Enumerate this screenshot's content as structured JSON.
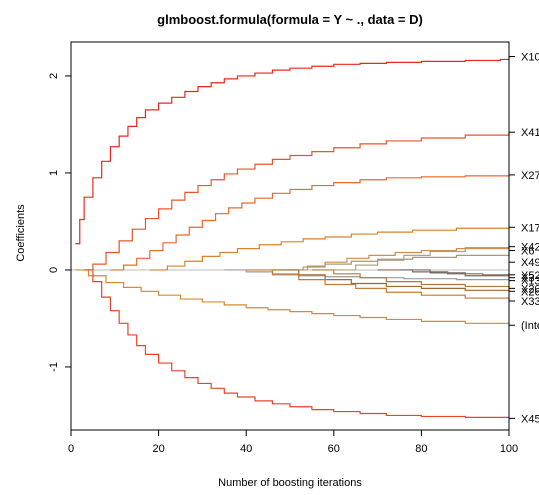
{
  "chart_data": {
    "type": "line",
    "title": "glmboost.formula(formula = Y ~ ., data = D)",
    "xlabel": "Number of boosting iterations",
    "ylabel": "Coefficients",
    "xlim": [
      0,
      100
    ],
    "ylim": [
      -1.65,
      2.35
    ],
    "x_ticks": [
      0,
      20,
      40,
      60,
      80,
      100
    ],
    "y_ticks": [
      -1,
      0,
      1,
      2
    ],
    "zero_line": true,
    "series": [
      {
        "name": "X10",
        "color": "#e8281f",
        "points": [
          [
            1,
            0.27
          ],
          [
            2,
            0.52
          ],
          [
            3,
            0.75
          ],
          [
            5,
            0.95
          ],
          [
            7,
            1.12
          ],
          [
            9,
            1.27
          ],
          [
            11,
            1.38
          ],
          [
            13,
            1.48
          ],
          [
            15,
            1.57
          ],
          [
            17,
            1.65
          ],
          [
            20,
            1.72
          ],
          [
            23,
            1.78
          ],
          [
            26,
            1.84
          ],
          [
            29,
            1.89
          ],
          [
            32,
            1.93
          ],
          [
            35,
            1.97
          ],
          [
            38,
            2.0
          ],
          [
            42,
            2.03
          ],
          [
            46,
            2.06
          ],
          [
            50,
            2.08
          ],
          [
            55,
            2.1
          ],
          [
            60,
            2.12
          ],
          [
            66,
            2.13
          ],
          [
            72,
            2.14
          ],
          [
            80,
            2.15
          ],
          [
            90,
            2.16
          ],
          [
            98,
            2.17
          ],
          [
            100,
            2.2
          ]
        ]
      },
      {
        "name": "X41",
        "color": "#e8552b",
        "points": [
          [
            3,
            0.0
          ],
          [
            5,
            0.06
          ],
          [
            8,
            0.18
          ],
          [
            11,
            0.3
          ],
          [
            14,
            0.42
          ],
          [
            17,
            0.53
          ],
          [
            20,
            0.63
          ],
          [
            23,
            0.72
          ],
          [
            26,
            0.8
          ],
          [
            29,
            0.87
          ],
          [
            32,
            0.93
          ],
          [
            35,
            0.99
          ],
          [
            38,
            1.04
          ],
          [
            42,
            1.09
          ],
          [
            46,
            1.14
          ],
          [
            50,
            1.18
          ],
          [
            55,
            1.22
          ],
          [
            60,
            1.26
          ],
          [
            66,
            1.3
          ],
          [
            72,
            1.33
          ],
          [
            80,
            1.36
          ],
          [
            90,
            1.39
          ],
          [
            100,
            1.42
          ]
        ]
      },
      {
        "name": "X27",
        "color": "#e8682b",
        "points": [
          [
            9,
            0.0
          ],
          [
            12,
            0.05
          ],
          [
            15,
            0.12
          ],
          [
            18,
            0.2
          ],
          [
            21,
            0.28
          ],
          [
            24,
            0.36
          ],
          [
            27,
            0.44
          ],
          [
            30,
            0.51
          ],
          [
            33,
            0.58
          ],
          [
            36,
            0.64
          ],
          [
            39,
            0.69
          ],
          [
            42,
            0.74
          ],
          [
            46,
            0.79
          ],
          [
            50,
            0.83
          ],
          [
            55,
            0.87
          ],
          [
            60,
            0.9
          ],
          [
            66,
            0.93
          ],
          [
            72,
            0.95
          ],
          [
            80,
            0.96
          ],
          [
            90,
            0.97
          ],
          [
            100,
            0.98
          ]
        ]
      },
      {
        "name": "X17",
        "color": "#d9822b",
        "points": [
          [
            18,
            0.0
          ],
          [
            22,
            0.04
          ],
          [
            26,
            0.09
          ],
          [
            30,
            0.14
          ],
          [
            34,
            0.18
          ],
          [
            38,
            0.22
          ],
          [
            43,
            0.26
          ],
          [
            48,
            0.29
          ],
          [
            53,
            0.32
          ],
          [
            58,
            0.34
          ],
          [
            64,
            0.37
          ],
          [
            70,
            0.39
          ],
          [
            78,
            0.41
          ],
          [
            88,
            0.43
          ],
          [
            100,
            0.44
          ]
        ]
      },
      {
        "name": "X42",
        "color": "#c98f4c",
        "points": [
          [
            50,
            0.0
          ],
          [
            54,
            0.04
          ],
          [
            58,
            0.08
          ],
          [
            63,
            0.12
          ],
          [
            68,
            0.15
          ],
          [
            74,
            0.18
          ],
          [
            80,
            0.2
          ],
          [
            88,
            0.22
          ],
          [
            100,
            0.24
          ]
        ]
      },
      {
        "name": "X6",
        "color": "#b0a085",
        "points": [
          [
            60,
            0.0
          ],
          [
            65,
            0.05
          ],
          [
            70,
            0.1
          ],
          [
            76,
            0.15
          ],
          [
            82,
            0.19
          ],
          [
            90,
            0.23
          ],
          [
            100,
            0.27
          ]
        ]
      },
      {
        "name": "X49",
        "color": "#a89878",
        "points": [
          [
            48,
            0.0
          ],
          [
            53,
            0.03
          ],
          [
            58,
            0.06
          ],
          [
            64,
            0.09
          ],
          [
            70,
            0.11
          ],
          [
            78,
            0.13
          ],
          [
            88,
            0.15
          ],
          [
            100,
            0.17
          ]
        ]
      },
      {
        "name": "X52",
        "color": "#8a6a55",
        "points": [
          [
            70,
            0.0
          ],
          [
            78,
            -0.02
          ],
          [
            86,
            -0.04
          ],
          [
            94,
            -0.05
          ],
          [
            100,
            -0.06
          ]
        ]
      },
      {
        "name": "X3",
        "color": "#6e6e6e",
        "points": [
          [
            75,
            0.0
          ],
          [
            82,
            -0.03
          ],
          [
            90,
            -0.06
          ],
          [
            100,
            -0.08
          ]
        ]
      },
      {
        "name": "X13",
        "color": "#9a9a9a",
        "points": [
          [
            35,
            0.0
          ],
          [
            40,
            -0.02
          ],
          [
            46,
            -0.04
          ],
          [
            52,
            -0.06
          ],
          [
            58,
            -0.07
          ],
          [
            66,
            -0.08
          ],
          [
            76,
            -0.09
          ],
          [
            88,
            -0.1
          ],
          [
            100,
            -0.11
          ]
        ]
      },
      {
        "name": "X20",
        "color": "#b0793e",
        "points": [
          [
            55,
            0.0
          ],
          [
            60,
            -0.04
          ],
          [
            66,
            -0.08
          ],
          [
            72,
            -0.12
          ],
          [
            80,
            -0.15
          ],
          [
            90,
            -0.17
          ],
          [
            100,
            -0.19
          ]
        ]
      },
      {
        "name": "X26",
        "color": "#a06830",
        "points": [
          [
            46,
            0.0
          ],
          [
            52,
            -0.05
          ],
          [
            58,
            -0.1
          ],
          [
            64,
            -0.14
          ],
          [
            72,
            -0.17
          ],
          [
            80,
            -0.19
          ],
          [
            90,
            -0.21
          ],
          [
            100,
            -0.22
          ]
        ]
      },
      {
        "name": "X33",
        "color": "#c27a37",
        "points": [
          [
            40,
            0.0
          ],
          [
            46,
            -0.05
          ],
          [
            52,
            -0.1
          ],
          [
            58,
            -0.15
          ],
          [
            65,
            -0.19
          ],
          [
            72,
            -0.23
          ],
          [
            80,
            -0.26
          ],
          [
            90,
            -0.29
          ],
          [
            100,
            -0.32
          ]
        ]
      },
      {
        "name": "(Intercept)",
        "color": "#d9892b",
        "points": [
          [
            1,
            0.0
          ],
          [
            4,
            -0.06
          ],
          [
            8,
            -0.13
          ],
          [
            12,
            -0.18
          ],
          [
            16,
            -0.22
          ],
          [
            20,
            -0.26
          ],
          [
            25,
            -0.3
          ],
          [
            30,
            -0.33
          ],
          [
            35,
            -0.36
          ],
          [
            40,
            -0.39
          ],
          [
            45,
            -0.41
          ],
          [
            50,
            -0.43
          ],
          [
            55,
            -0.45
          ],
          [
            60,
            -0.47
          ],
          [
            66,
            -0.49
          ],
          [
            72,
            -0.51
          ],
          [
            80,
            -0.53
          ],
          [
            90,
            -0.55
          ],
          [
            100,
            -0.57
          ]
        ]
      },
      {
        "name": "X45",
        "color": "#e8442b",
        "points": [
          [
            3,
            0.0
          ],
          [
            5,
            -0.12
          ],
          [
            7,
            -0.28
          ],
          [
            9,
            -0.42
          ],
          [
            11,
            -0.55
          ],
          [
            13,
            -0.67
          ],
          [
            15,
            -0.78
          ],
          [
            17,
            -0.87
          ],
          [
            20,
            -0.96
          ],
          [
            23,
            -1.04
          ],
          [
            26,
            -1.11
          ],
          [
            29,
            -1.17
          ],
          [
            32,
            -1.22
          ],
          [
            35,
            -1.27
          ],
          [
            38,
            -1.31
          ],
          [
            42,
            -1.35
          ],
          [
            46,
            -1.38
          ],
          [
            50,
            -1.41
          ],
          [
            55,
            -1.44
          ],
          [
            60,
            -1.46
          ],
          [
            66,
            -1.48
          ],
          [
            72,
            -1.5
          ],
          [
            80,
            -1.51
          ],
          [
            90,
            -1.52
          ],
          [
            100,
            -1.53
          ]
        ]
      }
    ],
    "right_labels": [
      {
        "text": "X10",
        "y": 2.2
      },
      {
        "text": "X41",
        "y": 1.42
      },
      {
        "text": "X27",
        "y": 0.98
      },
      {
        "text": "X17",
        "y": 0.44
      },
      {
        "text": "X42",
        "y": 0.24
      },
      {
        "text": "X6",
        "y": 0.2
      },
      {
        "text": "X49",
        "y": 0.08
      },
      {
        "text": "X52",
        "y": -0.05
      },
      {
        "text": "X3",
        "y": -0.08
      },
      {
        "text": "X13",
        "y": -0.11
      },
      {
        "text": "X20",
        "y": -0.19
      },
      {
        "text": "X26",
        "y": -0.22
      },
      {
        "text": "X33",
        "y": -0.32
      },
      {
        "text": "(Intercept)",
        "y": -0.57
      },
      {
        "text": "X45",
        "y": -1.53
      }
    ]
  }
}
